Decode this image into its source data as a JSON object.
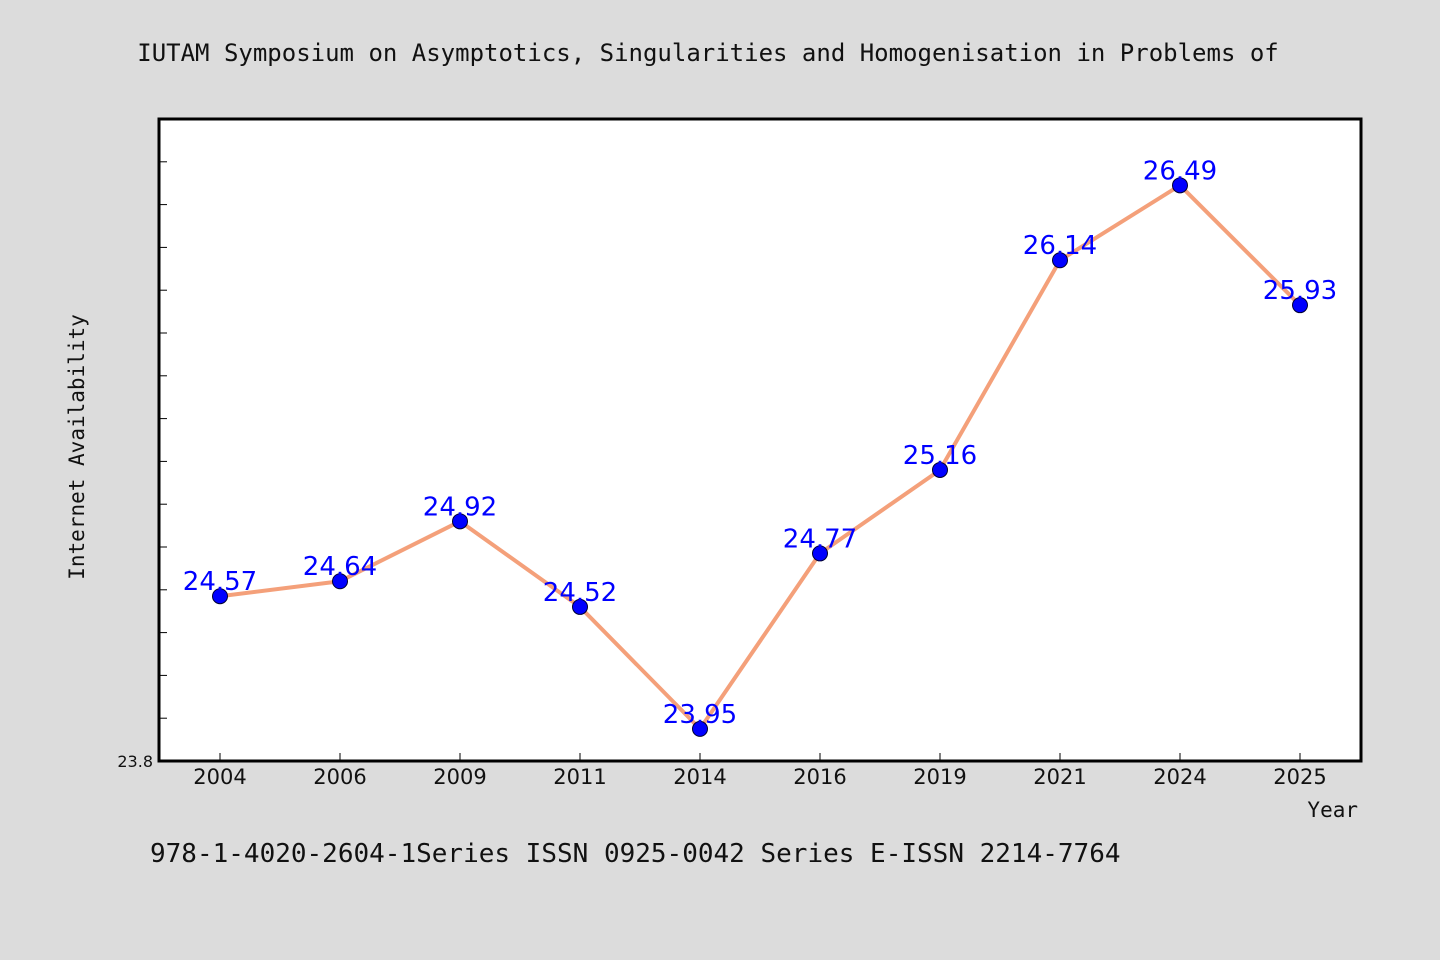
{
  "header": {
    "title": "IUTAM Symposium on Asymptotics, Singularities and Homogenisation in Problems of"
  },
  "footer": {
    "text": "978-1-4020-2604-1Series ISSN 0925-0042 Series E-ISSN 2214-7764"
  },
  "colors": {
    "background": "#dcdcdc",
    "plot_area": "#ffffff",
    "line": "#f4a07a",
    "marker": "#0000ff",
    "data_label": "#0000ff"
  },
  "chart_data": {
    "type": "line",
    "title": "IUTAM Symposium on Asymptotics, Singularities and Homogenisation in Problems of",
    "xlabel": "Year",
    "ylabel": "Internet Availability",
    "categories": [
      "2004",
      "2006",
      "2009",
      "2011",
      "2014",
      "2016",
      "2019",
      "2021",
      "2024",
      "2025"
    ],
    "series": [
      {
        "values": [
          24.57,
          24.64,
          24.92,
          24.52,
          23.95,
          24.77,
          25.16,
          26.14,
          26.49,
          25.93
        ],
        "labels": [
          "24.57",
          "24.64",
          "24.92",
          "24.52",
          "23.95",
          "24.77",
          "25.16",
          "26.14",
          "26.49",
          "25.93"
        ]
      }
    ],
    "ylim": [
      23.8,
      26.8
    ],
    "yticks_labeled": [
      {
        "value": 23.8,
        "label": "23.8"
      }
    ],
    "y_minor_step": 0.2,
    "grid": false,
    "legend": "none"
  }
}
